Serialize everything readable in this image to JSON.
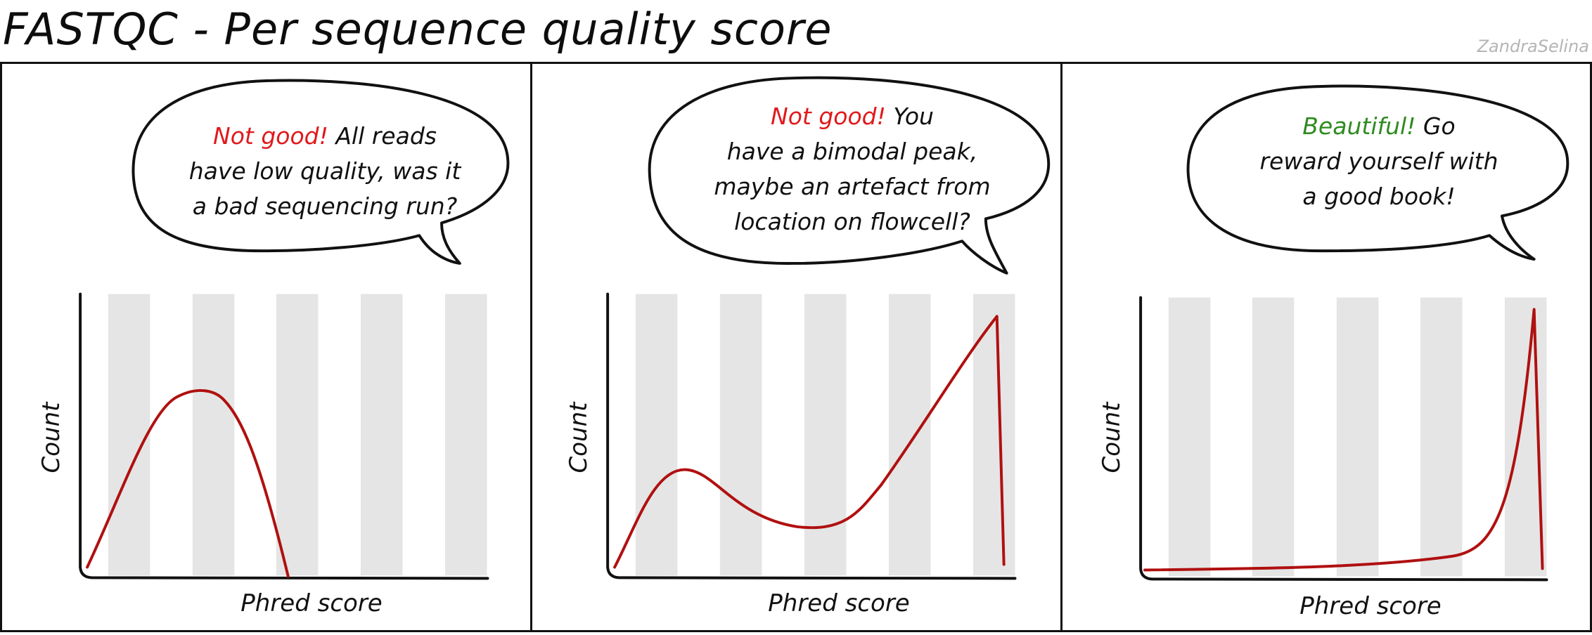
{
  "title": "FASTQC - Per sequence quality score",
  "credit": "ZandraSelina",
  "colors": {
    "curve": "#b01010",
    "band": "#e5e5e5",
    "bad": "#e0191c",
    "good": "#2e8b1f"
  },
  "panels": [
    {
      "exclaim": "Not good!",
      "lines": [
        "All reads",
        "have low quality, was it",
        "a bad sequencing run?"
      ],
      "ylabel": "Count",
      "xlabel": "Phred score",
      "verdict": "bad"
    },
    {
      "exclaim": "Not good!",
      "lines": [
        "You",
        "have a bimodal peak,",
        "maybe an artefact from",
        "location on flowcell?"
      ],
      "ylabel": "Count",
      "xlabel": "Phred score",
      "verdict": "bad"
    },
    {
      "exclaim": "Beautiful!",
      "lines": [
        "Go",
        "reward yourself with",
        "a good book!"
      ],
      "ylabel": "Count",
      "xlabel": "Phred score",
      "verdict": "good"
    }
  ]
}
